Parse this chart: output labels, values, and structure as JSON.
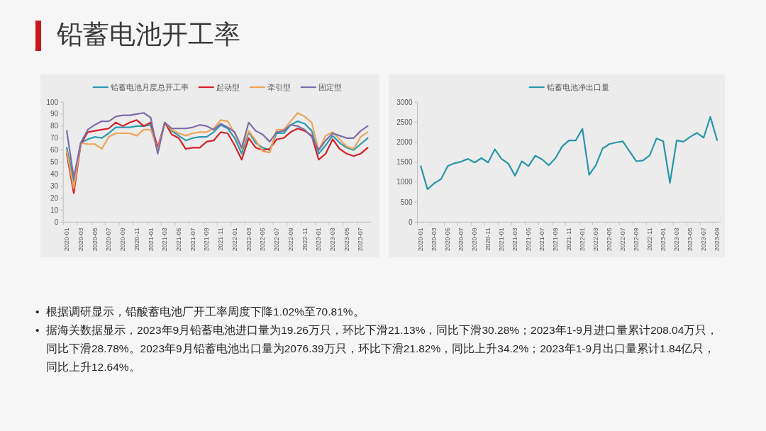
{
  "chart_data": [
    {
      "type": "other",
      "title": "铅蓄电池开工率"
    },
    {
      "type": "line",
      "categories": [
        "2020-01",
        null,
        "2020-03",
        null,
        "2020-05",
        null,
        "2020-07",
        null,
        "2020-09",
        null,
        "2020-11",
        null,
        "2021-01",
        null,
        "2021-03",
        null,
        "2021-05",
        null,
        "2021-07",
        null,
        "2021-09",
        null,
        "2021-11",
        null,
        "2022-01",
        null,
        "2022-03",
        null,
        "2022-05",
        null,
        "2022-07",
        null,
        "2022-09",
        null,
        "2022-11",
        null,
        "2023-01",
        null,
        "2023-03",
        null,
        "2023-05",
        null,
        "2023-07",
        null
      ],
      "series": [
        {
          "name": "铅蓄电池月度总开工率",
          "color": "#2a9bb0",
          "values": [
            62,
            34,
            66,
            69,
            71,
            70,
            74,
            79,
            79,
            79,
            80,
            80,
            81,
            59,
            83,
            76,
            72,
            68,
            70,
            71,
            71,
            75,
            81,
            78,
            70,
            57,
            75,
            66,
            62,
            60,
            74,
            74,
            81,
            84,
            82,
            76,
            57,
            64,
            72,
            66,
            62,
            60,
            65,
            70
          ]
        },
        {
          "name": "起动型",
          "color": "#d42128",
          "values": [
            57,
            24,
            65,
            75,
            76,
            77,
            78,
            83,
            80,
            83,
            85,
            80,
            83,
            62,
            83,
            73,
            70,
            61,
            62,
            62,
            67,
            68,
            75,
            74,
            64,
            52,
            70,
            62,
            60,
            61,
            69,
            70,
            75,
            78,
            76,
            72,
            52,
            57,
            69,
            61,
            57,
            55,
            57,
            62
          ]
        },
        {
          "name": "牵引型",
          "color": "#eda45a",
          "values": [
            59,
            28,
            66,
            65,
            65,
            61,
            71,
            74,
            74,
            74,
            72,
            77,
            77,
            60,
            83,
            77,
            74,
            72,
            74,
            75,
            75,
            78,
            85,
            84,
            74,
            61,
            76,
            68,
            59,
            58,
            77,
            77,
            84,
            91,
            88,
            83,
            60,
            72,
            75,
            69,
            63,
            61,
            71,
            75
          ]
        },
        {
          "name": "固定型",
          "color": "#7e6ca8",
          "values": [
            76,
            37,
            66,
            77,
            81,
            84,
            84,
            88,
            89,
            89,
            90,
            91,
            87,
            57,
            83,
            78,
            78,
            78,
            79,
            81,
            80,
            77,
            82,
            79,
            75,
            62,
            83,
            76,
            73,
            67,
            75,
            76,
            81,
            80,
            77,
            71,
            60,
            68,
            74,
            72,
            70,
            70,
            76,
            80
          ]
        }
      ],
      "ylim": [
        0,
        100
      ],
      "yticks": [
        0,
        10,
        20,
        30,
        40,
        50,
        60,
        70,
        80,
        90,
        100
      ],
      "legend": "top"
    },
    {
      "type": "line",
      "categories": [
        "2020-01",
        null,
        "2020-03",
        null,
        "2020-05",
        null,
        "2020-07",
        null,
        "2020-09",
        null,
        "2020-11",
        null,
        "2021-01",
        null,
        "2021-03",
        null,
        "2021-05",
        null,
        "2021-07",
        null,
        "2021-09",
        null,
        "2021-11",
        null,
        "2022-01",
        null,
        "2022-03",
        null,
        "2022-05",
        null,
        "2022-07",
        null,
        "2022-09",
        null,
        "2022-11",
        null,
        "2023-01",
        null,
        "2023-03",
        null,
        "2023-05",
        null,
        "2023-07",
        null,
        "2023-09"
      ],
      "series": [
        {
          "name": "铅蓄电池净出口量",
          "color": "#2a95a8",
          "values": [
            1400,
            820,
            970,
            1070,
            1400,
            1470,
            1510,
            1580,
            1490,
            1600,
            1490,
            1820,
            1580,
            1460,
            1160,
            1520,
            1400,
            1660,
            1570,
            1420,
            1600,
            1890,
            2040,
            2040,
            2330,
            1180,
            1420,
            1840,
            1950,
            1990,
            2020,
            1770,
            1520,
            1540,
            1670,
            2090,
            2020,
            980,
            2040,
            2010,
            2130,
            2230,
            2110,
            2630,
            2050
          ]
        }
      ],
      "ylim": [
        0,
        3000
      ],
      "yticks": [
        0,
        500,
        1000,
        1500,
        2000,
        2500,
        3000
      ],
      "legend": "top"
    },
    {
      "type": "other",
      "annotations": [
        "• 根据调研显示，铅酸蓄电池厂开工率周度下降1.02%至70.81%。",
        "• 据海关数据显示，2023年9月铅蓄电池进口量为19.26万只，环比下滑21.13%，同比下滑30.28%；2023年1-9月进口量累计208.04万只，同比下滑28.78%。2023年9月铅蓄电池出口量为2076.39万只，环比下滑21.82%，同比上升34.2%；2023年1-9月出口量累计1.84亿只，同比上升12.64%。"
      ]
    }
  ]
}
